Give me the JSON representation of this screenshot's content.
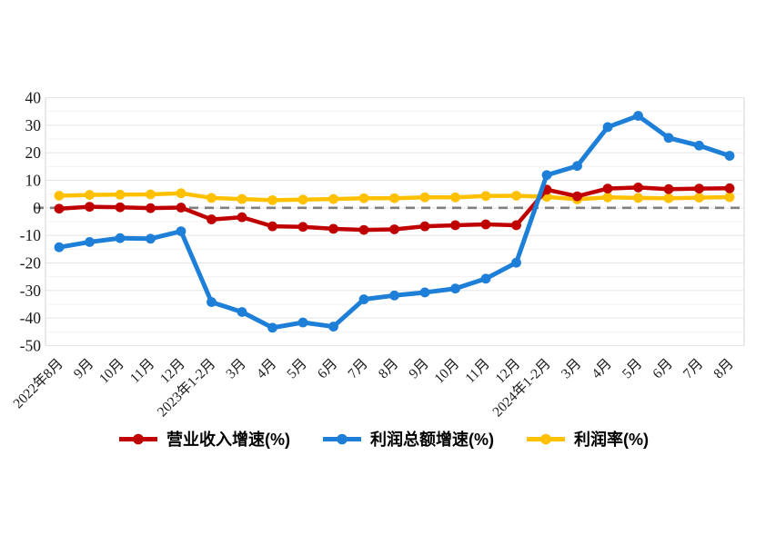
{
  "chart_data": {
    "type": "line",
    "title": "",
    "xlabel": "",
    "ylabel": "",
    "categories": [
      "2022年8月",
      "9月",
      "10月",
      "11月",
      "12月",
      "2023年1-2月",
      "3月",
      "4月",
      "5月",
      "6月",
      "7月",
      "8月",
      "9月",
      "10月",
      "11月",
      "12月",
      "2024年1-2月",
      "3月",
      "4月",
      "5月",
      "6月",
      "7月",
      "8月"
    ],
    "series": [
      {
        "name": "营业收入增速(%)",
        "color": "#c00000",
        "values": [
          -0.3,
          0.4,
          0.2,
          -0.1,
          0.1,
          -4.2,
          -3.4,
          -6.7,
          -6.9,
          -7.6,
          -8.0,
          -7.8,
          -6.7,
          -6.3,
          -6.0,
          -6.3,
          6.6,
          4.2,
          7.0,
          7.4,
          6.8,
          7.0,
          7.1
        ]
      },
      {
        "name": "利润总额增速(%)",
        "color": "#1e7fd8",
        "values": [
          -14.3,
          -12.4,
          -11.0,
          -11.2,
          -8.5,
          -34.2,
          -37.8,
          -43.5,
          -41.6,
          -43.1,
          -33.2,
          -31.8,
          -30.7,
          -29.3,
          -25.7,
          -19.9,
          11.9,
          15.2,
          29.3,
          33.4,
          25.4,
          22.6,
          18.9
        ]
      },
      {
        "name": "利润率(%)",
        "color": "#ffc000",
        "values": [
          4.4,
          4.7,
          4.8,
          4.9,
          5.3,
          3.6,
          3.2,
          2.8,
          3.0,
          3.2,
          3.5,
          3.5,
          3.8,
          3.8,
          4.3,
          4.4,
          4.0,
          3.1,
          3.8,
          3.6,
          3.5,
          3.7,
          3.9
        ]
      }
    ],
    "ylim": [
      -50,
      40
    ],
    "yticks": [
      "40",
      "30",
      "20",
      "10",
      "0",
      "-10",
      "-20",
      "-30",
      "-40",
      "-50"
    ],
    "ytick_values": [
      40,
      30,
      20,
      10,
      0,
      -10,
      -20,
      -30,
      -40,
      -50
    ],
    "grid": "on",
    "minor_grid": "on",
    "zero_line": {
      "style": "dashed",
      "color": "#7f7f7f"
    },
    "legend_position": "bottom",
    "grid_color": "#e4e4e4",
    "minor_grid_color": "#f3f3f3",
    "axis_line_color": "#d5d5d5",
    "tick_label_color": "#1a1a1a"
  }
}
